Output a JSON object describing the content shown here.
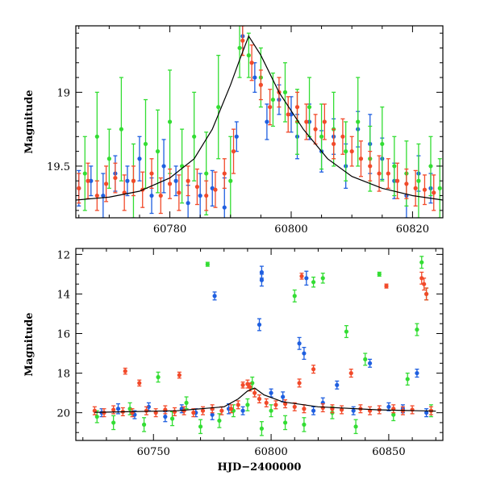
{
  "chart_data": [
    {
      "type": "scatter",
      "title": "",
      "ylabel": "Magnitude",
      "xlabel": "",
      "xlim": [
        60764.5,
        60825
      ],
      "ylim": [
        19.85,
        18.55
      ],
      "y_inverted": true,
      "x_ticks": [
        60780,
        60800,
        60820
      ],
      "x_tick_labels": [
        "60780",
        "60800",
        "60820"
      ],
      "y_ticks": [
        19,
        19.5
      ],
      "y_tick_labels": [
        "19",
        "19.5"
      ],
      "grid": false,
      "legend": "none",
      "model_curve": {
        "color": "#000000",
        "x": [
          60764.5,
          60770,
          60775,
          60780,
          60784,
          60787,
          60790,
          60791.5,
          60793,
          60795,
          60798,
          60802,
          60806,
          60810,
          60815,
          60820,
          60825
        ],
        "y": [
          19.73,
          19.71,
          19.67,
          19.58,
          19.45,
          19.25,
          18.95,
          18.78,
          18.62,
          18.75,
          19.0,
          19.25,
          19.45,
          19.57,
          19.65,
          19.7,
          19.73
        ]
      },
      "series": [
        {
          "color": "#1f5fe0",
          "x": [
            60765,
            60767,
            60769,
            60771,
            60773,
            60775,
            60777,
            60779,
            60781,
            60783,
            60785,
            60787,
            60789,
            60791,
            60792,
            60794,
            60796,
            60798,
            60800,
            60801,
            60803,
            60805,
            60807,
            60809,
            60811,
            60813,
            60815,
            60817,
            60819,
            60821,
            60823
          ],
          "y": [
            19.65,
            19.6,
            19.7,
            19.55,
            19.6,
            19.45,
            19.7,
            19.5,
            19.6,
            19.75,
            19.7,
            19.65,
            19.78,
            19.3,
            18.62,
            18.9,
            19.2,
            19.05,
            19.15,
            19.3,
            19.2,
            19.4,
            19.3,
            19.5,
            19.25,
            19.35,
            19.45,
            19.6,
            19.7,
            19.55,
            19.65
          ],
          "err": [
            0.12,
            0.1,
            0.15,
            0.12,
            0.1,
            0.15,
            0.12,
            0.18,
            0.1,
            0.12,
            0.15,
            0.12,
            0.2,
            0.1,
            0.08,
            0.1,
            0.12,
            0.1,
            0.12,
            0.15,
            0.12,
            0.14,
            0.12,
            0.15,
            0.12,
            0.2,
            0.14,
            0.12,
            0.15,
            0.12,
            0.1
          ]
        },
        {
          "color": "#33dd33",
          "x": [
            60766,
            60768,
            60770,
            60772,
            60774,
            60776,
            60778,
            60780,
            60782,
            60784,
            60786,
            60788,
            60790,
            60791.5,
            60793,
            60795,
            60797,
            60799,
            60801,
            60803,
            60805,
            60807,
            60809,
            60811,
            60813,
            60815,
            60817,
            60819,
            60821,
            60823,
            60824.5
          ],
          "y": [
            19.55,
            19.3,
            19.45,
            19.25,
            19.6,
            19.35,
            19.4,
            19.2,
            19.5,
            19.3,
            19.55,
            19.1,
            19.6,
            18.7,
            18.75,
            18.9,
            19.05,
            19.0,
            19.2,
            19.1,
            19.3,
            19.25,
            19.4,
            19.2,
            19.45,
            19.35,
            19.5,
            19.55,
            19.6,
            19.5,
            19.65
          ],
          "err": [
            0.25,
            0.3,
            0.2,
            0.35,
            0.25,
            0.3,
            0.28,
            0.35,
            0.25,
            0.3,
            0.28,
            0.35,
            0.3,
            0.2,
            0.15,
            0.2,
            0.18,
            0.2,
            0.22,
            0.2,
            0.22,
            0.25,
            0.2,
            0.3,
            0.22,
            0.25,
            0.2,
            0.22,
            0.25,
            0.2,
            0.2
          ]
        },
        {
          "color": "#f24a2a",
          "x": [
            60765,
            60766.5,
            60768,
            60769.5,
            60771,
            60772.5,
            60774,
            60775.5,
            60777,
            60778.5,
            60780,
            60781.5,
            60783,
            60784.5,
            60786,
            60787.5,
            60789,
            60790.5,
            60792,
            60793.5,
            60795,
            60796.5,
            60798,
            60799.5,
            60801,
            60802.5,
            60804,
            60805.5,
            60807,
            60808.5,
            60810,
            60811.5,
            60813,
            60814.5,
            60816,
            60817.5,
            60819,
            60820.5,
            60822,
            60823.5
          ],
          "y": [
            19.65,
            19.6,
            19.7,
            19.62,
            19.58,
            19.68,
            19.6,
            19.66,
            19.55,
            19.7,
            19.62,
            19.68,
            19.6,
            19.64,
            19.7,
            19.66,
            19.55,
            19.4,
            18.65,
            18.8,
            18.95,
            19.1,
            19.0,
            19.15,
            19.1,
            19.2,
            19.25,
            19.2,
            19.35,
            19.3,
            19.4,
            19.45,
            19.5,
            19.55,
            19.55,
            19.6,
            19.62,
            19.65,
            19.66,
            19.68
          ],
          "err": [
            0.1,
            0.12,
            0.1,
            0.12,
            0.1,
            0.12,
            0.1,
            0.12,
            0.1,
            0.12,
            0.1,
            0.12,
            0.1,
            0.12,
            0.1,
            0.12,
            0.1,
            0.15,
            0.1,
            0.12,
            0.1,
            0.12,
            0.1,
            0.12,
            0.1,
            0.12,
            0.1,
            0.12,
            0.1,
            0.12,
            0.1,
            0.12,
            0.1,
            0.12,
            0.1,
            0.12,
            0.1,
            0.12,
            0.1,
            0.12
          ]
        }
      ]
    },
    {
      "type": "scatter",
      "title": "",
      "ylabel": "Magnitude",
      "xlabel": "HJD−2400000",
      "xlim": [
        60717,
        60873
      ],
      "ylim": [
        21.4,
        11.7
      ],
      "y_inverted": true,
      "x_ticks": [
        60750,
        60800,
        60850
      ],
      "x_tick_labels": [
        "60750",
        "60800",
        "60850"
      ],
      "y_ticks": [
        12,
        14,
        16,
        18,
        20
      ],
      "y_tick_labels": [
        "12",
        "14",
        "16",
        "18",
        "20"
      ],
      "grid": false,
      "legend": "none",
      "model_curve": {
        "color": "#000000",
        "x": [
          60725,
          60760,
          60780,
          60786,
          60790,
          60793,
          60797,
          60805,
          60820,
          60845,
          60870
        ],
        "y": [
          19.98,
          19.9,
          19.7,
          19.3,
          18.9,
          18.75,
          19.1,
          19.45,
          19.7,
          19.85,
          19.92
        ]
      },
      "series": [
        {
          "color": "#1f5fe0",
          "x": [
            60728,
            60735,
            60742,
            60748,
            60755,
            60762,
            60768,
            60775,
            60776,
            60782,
            60788,
            60795,
            60796,
            60796,
            60800,
            60805,
            60812,
            60814,
            60815,
            60818,
            60822,
            60828,
            60835,
            60842,
            60850,
            60856,
            60862,
            60866
          ],
          "y": [
            20.0,
            19.8,
            20.1,
            19.7,
            20.2,
            19.8,
            20.0,
            20.1,
            14.1,
            19.8,
            19.9,
            15.55,
            13.3,
            12.9,
            19.0,
            19.2,
            16.5,
            17.0,
            13.2,
            19.9,
            19.5,
            18.6,
            19.9,
            17.5,
            19.7,
            19.8,
            18.0,
            20.0
          ],
          "err": [
            0.2,
            0.25,
            0.2,
            0.2,
            0.25,
            0.2,
            0.2,
            0.25,
            0.2,
            0.25,
            0.2,
            0.3,
            0.3,
            0.3,
            0.2,
            0.25,
            0.3,
            0.3,
            0.35,
            0.2,
            0.25,
            0.2,
            0.2,
            0.2,
            0.2,
            0.2,
            0.2,
            0.2
          ]
        },
        {
          "color": "#33dd33",
          "x": [
            60726,
            60733,
            60740,
            60746,
            60752,
            60758,
            60764,
            60770,
            60773,
            60778,
            60784,
            60790,
            60792,
            60796,
            60800,
            60806,
            60810,
            60814,
            60818,
            60822,
            60826,
            60832,
            60836,
            60840,
            60846,
            60852,
            60858,
            60862,
            60864,
            60866,
            60868
          ],
          "y": [
            20.2,
            20.5,
            19.8,
            20.6,
            18.2,
            20.3,
            19.5,
            20.7,
            12.5,
            20.4,
            19.9,
            19.6,
            18.5,
            20.8,
            19.9,
            20.5,
            14.1,
            20.6,
            13.4,
            13.2,
            20.0,
            15.9,
            20.7,
            17.3,
            13.0,
            20.1,
            18.3,
            15.8,
            12.4,
            14.0,
            19.9
          ],
          "err": [
            0.3,
            0.35,
            0.3,
            0.35,
            0.25,
            0.35,
            0.3,
            0.35,
            0.1,
            0.35,
            0.3,
            0.3,
            0.3,
            0.35,
            0.3,
            0.35,
            0.3,
            0.35,
            0.25,
            0.25,
            0.3,
            0.3,
            0.35,
            0.3,
            0.1,
            0.3,
            0.3,
            0.3,
            0.3,
            0.3,
            0.3
          ]
        },
        {
          "color": "#f24a2a",
          "x": [
            60725,
            60729,
            60733,
            60737,
            60738,
            60741,
            60744,
            60747,
            60751,
            60755,
            60759,
            60761,
            60763,
            60767,
            60771,
            60775,
            60779,
            60783,
            60786,
            60788,
            60790,
            60791,
            60793,
            60795,
            60798,
            60802,
            60806,
            60810,
            60812,
            60813,
            60814,
            60818,
            60822,
            60826,
            60830,
            60834,
            60838,
            60842,
            60846,
            60849,
            60852,
            60856,
            60860,
            60864,
            60865,
            60866,
            60868
          ],
          "y": [
            19.9,
            20.0,
            19.85,
            19.95,
            17.9,
            20.0,
            18.5,
            19.9,
            20.0,
            19.85,
            19.95,
            18.1,
            19.9,
            20.0,
            19.9,
            19.8,
            19.9,
            19.8,
            19.6,
            18.6,
            18.55,
            18.7,
            19.0,
            19.3,
            19.5,
            19.6,
            19.55,
            19.7,
            18.5,
            13.1,
            19.8,
            17.8,
            19.75,
            19.8,
            19.85,
            18.0,
            19.8,
            19.9,
            19.85,
            13.6,
            19.8,
            19.9,
            19.85,
            13.2,
            13.5,
            14.0,
            19.9
          ],
          "err": [
            0.2,
            0.2,
            0.2,
            0.2,
            0.15,
            0.2,
            0.15,
            0.2,
            0.2,
            0.2,
            0.2,
            0.15,
            0.2,
            0.2,
            0.2,
            0.2,
            0.2,
            0.2,
            0.2,
            0.15,
            0.2,
            0.2,
            0.2,
            0.2,
            0.2,
            0.2,
            0.2,
            0.2,
            0.2,
            0.15,
            0.2,
            0.2,
            0.2,
            0.2,
            0.2,
            0.2,
            0.2,
            0.2,
            0.2,
            0.1,
            0.2,
            0.2,
            0.2,
            0.3,
            0.3,
            0.3,
            0.2
          ]
        }
      ]
    }
  ]
}
